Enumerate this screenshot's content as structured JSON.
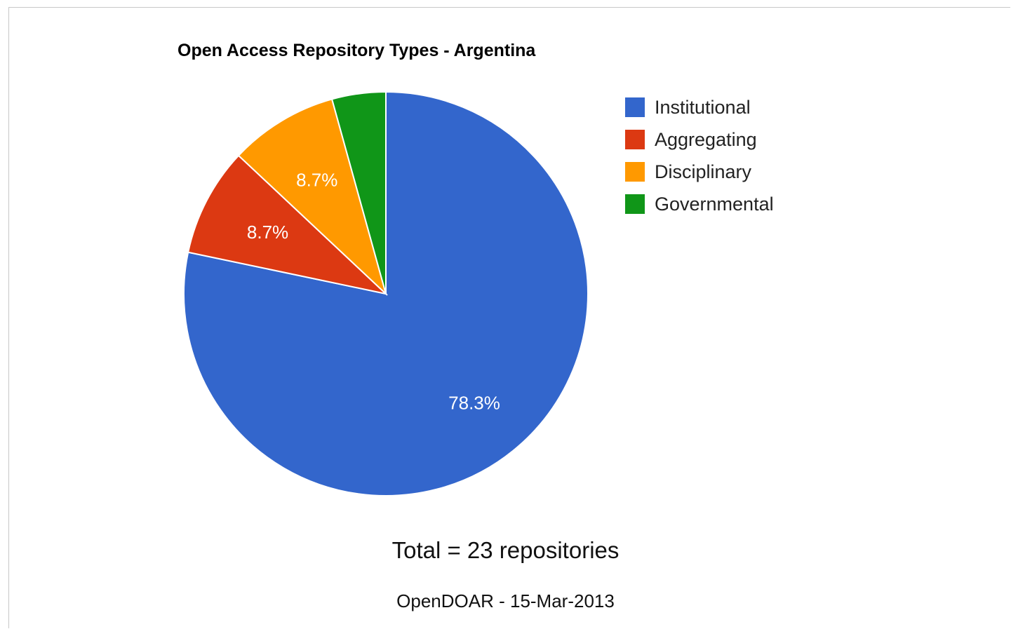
{
  "chart_data": {
    "type": "pie",
    "title": "Open Access Repository Types - Argentina",
    "slices": [
      {
        "name": "Institutional",
        "value": 78.3,
        "label": "78.3%",
        "color": "#3366cc"
      },
      {
        "name": "Aggregating",
        "value": 8.7,
        "label": "8.7%",
        "color": "#dc3912"
      },
      {
        "name": "Disciplinary",
        "value": 8.7,
        "label": "8.7%",
        "color": "#ff9900"
      },
      {
        "name": "Governmental",
        "value": 4.3,
        "label": "",
        "color": "#109618"
      }
    ],
    "legend_position": "right"
  },
  "footer": {
    "total": "Total = 23 repositories",
    "source": "OpenDOAR - 15-Mar-2013"
  }
}
